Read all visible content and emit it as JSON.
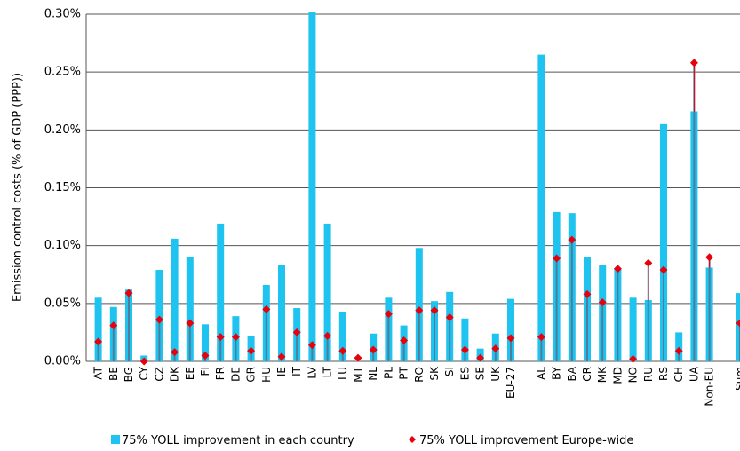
{
  "chart_data": {
    "type": "bar_marker",
    "y_label": "Emission control costs (% of GDP (PPP))",
    "categories": [
      "AT",
      "BE",
      "BG",
      "CY",
      "CZ",
      "DK",
      "EE",
      "FI",
      "FR",
      "DE",
      "GR",
      "HU",
      "IE",
      "IT",
      "LV",
      "LT",
      "LU",
      "MT",
      "NL",
      "PL",
      "PT",
      "RO",
      "SK",
      "SI",
      "ES",
      "SE",
      "UK",
      "EU-27",
      null,
      "AL",
      "BY",
      "BA",
      "CR",
      "MK",
      "MD",
      "NO",
      "RU",
      "RS",
      "CH",
      "UA",
      "Non-EU",
      null,
      "Sum"
    ],
    "series": [
      {
        "name": "75% YOLL improvement in each country",
        "color": "#1ec3ef",
        "kind": "bar",
        "values": [
          0.055,
          0.047,
          0.062,
          0.005,
          0.079,
          0.106,
          0.09,
          0.032,
          0.119,
          0.039,
          0.022,
          0.066,
          0.083,
          0.046,
          0.302,
          0.119,
          0.043,
          0,
          0.024,
          0.055,
          0.031,
          0.098,
          0.052,
          0.06,
          0.037,
          0.011,
          0.024,
          0.054,
          null,
          0.265,
          0.129,
          0.128,
          0.09,
          0.083,
          0.08,
          0.055,
          0.053,
          0.205,
          0.025,
          0.216,
          0.081,
          null,
          0.059
        ]
      },
      {
        "name": "75% YOLL improvement Europe-wide",
        "color": "#e8000b",
        "kind": "marker",
        "values": [
          0.017,
          0.031,
          0.059,
          0.0,
          0.036,
          0.008,
          0.033,
          0.005,
          0.021,
          0.021,
          0.009,
          0.045,
          0.004,
          0.025,
          0.014,
          0.022,
          0.009,
          0.003,
          0.01,
          0.041,
          0.018,
          0.044,
          0.044,
          0.038,
          0.01,
          0.003,
          0.011,
          0.02,
          null,
          0.021,
          0.089,
          0.105,
          0.058,
          0.051,
          0.08,
          0.002,
          0.085,
          0.079,
          0.009,
          0.258,
          0.09,
          null,
          0.033
        ]
      }
    ],
    "ylim": [
      0,
      0.3
    ],
    "yticks": [
      {
        "value": 0,
        "label": "0.00%"
      },
      {
        "value": 0.05,
        "label": "0.05%"
      },
      {
        "value": 0.1,
        "label": "0.10%"
      },
      {
        "value": 0.15,
        "label": "0.15%"
      },
      {
        "value": 0.2,
        "label": "0.20%"
      },
      {
        "value": 0.25,
        "label": "0.25%"
      },
      {
        "value": 0.3,
        "label": "0.30%"
      }
    ],
    "grid": true
  }
}
